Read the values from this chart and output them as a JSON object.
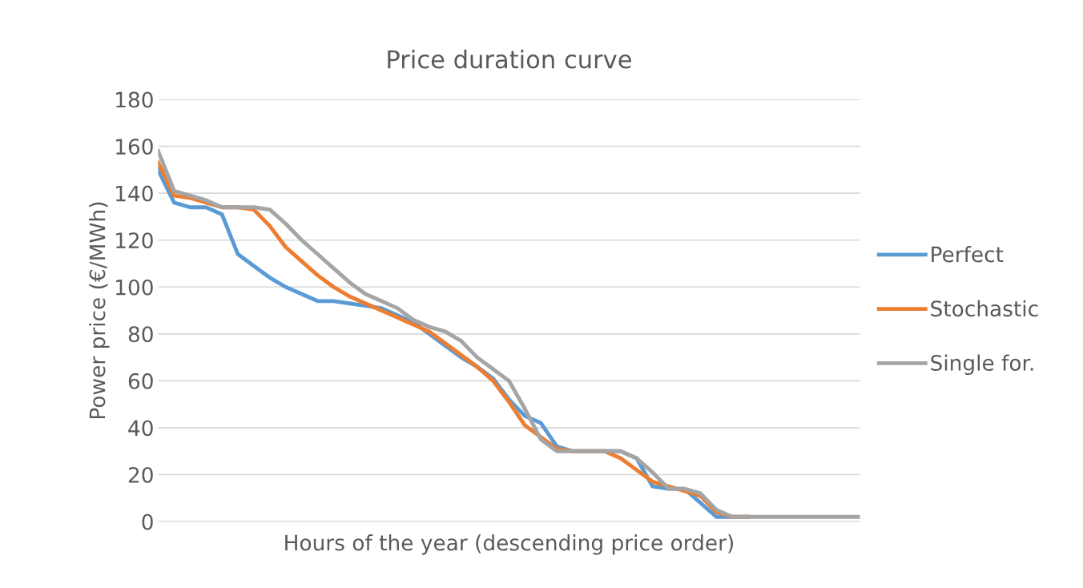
{
  "chart_data": {
    "type": "line",
    "title": "Price duration curve",
    "xlabel": "Hours of the year (descending price order)",
    "ylabel": "Power price (€/MWh)",
    "categories": [
      null,
      null,
      null,
      null,
      null,
      null,
      null,
      null,
      null,
      null,
      null,
      null,
      null,
      null,
      null,
      null,
      null,
      null,
      null,
      null,
      null,
      null,
      null,
      null,
      null,
      null,
      null,
      null,
      null,
      null,
      null,
      null,
      null,
      null,
      null,
      null,
      null,
      null,
      null,
      null,
      null,
      null,
      null,
      null,
      null
    ],
    "series": [
      {
        "name": "Perfect",
        "color": "#5b9bd5",
        "values": [
          150,
          136,
          134,
          134,
          131,
          114,
          109,
          104,
          100,
          97,
          94,
          94,
          93,
          92,
          91,
          88,
          85,
          80,
          75,
          70,
          66,
          61,
          52,
          45,
          42,
          32,
          30,
          30,
          30,
          30,
          27,
          15,
          14,
          14,
          8,
          2,
          2,
          2,
          null,
          null,
          null,
          null,
          null,
          null,
          null
        ]
      },
      {
        "name": "Stochastic",
        "color": "#ed7d31",
        "values": [
          153,
          139,
          138,
          136,
          134,
          134,
          133,
          126,
          117,
          111,
          105,
          100,
          96,
          93,
          90,
          87,
          84,
          81,
          76,
          71,
          66,
          60,
          51,
          41,
          36,
          31,
          30,
          30,
          30,
          27,
          22,
          17,
          15,
          13,
          11,
          4,
          2,
          2,
          null,
          null,
          null,
          null,
          null,
          null,
          null
        ]
      },
      {
        "name": "Single for.",
        "color": "#a5a5a5",
        "values": [
          158,
          141,
          139,
          137,
          134,
          134,
          134,
          133,
          127,
          120,
          114,
          108,
          102,
          97,
          94,
          91,
          86,
          83,
          81,
          77,
          70,
          65,
          60,
          48,
          35,
          30,
          30,
          30,
          30,
          30,
          27,
          21,
          14,
          14,
          12,
          5,
          2,
          2,
          2,
          2,
          2,
          2,
          2,
          2,
          2
        ]
      }
    ],
    "ylim": [
      0,
      180
    ],
    "yticks": [
      0,
      20,
      40,
      60,
      80,
      100,
      120,
      140,
      160,
      180
    ],
    "grid": "y",
    "legend": "right",
    "marker": "none",
    "line_style": "solid"
  }
}
